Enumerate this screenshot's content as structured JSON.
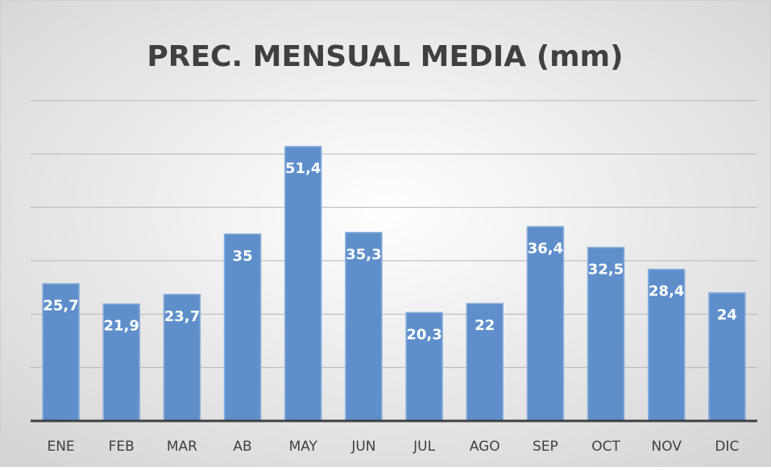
{
  "chart_data": {
    "type": "bar",
    "title": "PREC. MENSUAL MEDIA (mm)",
    "categories": [
      "ENE",
      "FEB",
      "MAR",
      "AB",
      "MAY",
      "JUN",
      "JUL",
      "AGO",
      "SEP",
      "OCT",
      "NOV",
      "DIC"
    ],
    "values": [
      25.7,
      21.9,
      23.7,
      35,
      51.4,
      35.3,
      20.3,
      22,
      36.4,
      32.5,
      28.4,
      24
    ],
    "value_labels": [
      "25,7",
      "21,9",
      "23,7",
      "35",
      "51,4",
      "35,3",
      "20,3",
      "22",
      "36,4",
      "32,5",
      "28,4",
      "24"
    ],
    "color": "#5f8fcb",
    "ylim": [
      0,
      60
    ],
    "yticks": [
      0,
      10,
      20,
      30,
      40,
      50,
      60
    ],
    "grid": true
  }
}
